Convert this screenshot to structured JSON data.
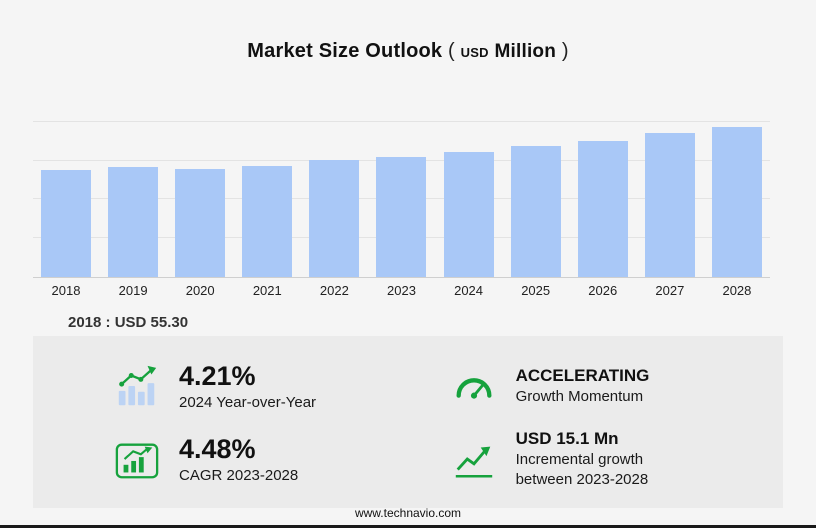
{
  "title": {
    "main": "Market Size Outlook",
    "paren_open": "(",
    "currency": "USD",
    "unit": "Million",
    "paren_close": ")"
  },
  "chart_data": {
    "type": "bar",
    "title": "Market Size Outlook (USD Million)",
    "categories": [
      "2018",
      "2019",
      "2020",
      "2021",
      "2022",
      "2023",
      "2024",
      "2025",
      "2026",
      "2027",
      "2028"
    ],
    "values": [
      55.3,
      56.8,
      55.8,
      57.3,
      60.3,
      62.0,
      64.6,
      67.5,
      70.2,
      74.0,
      77.1
    ],
    "xlabel": "",
    "ylabel": "",
    "ylim": [
      0,
      85
    ],
    "grid_step": 20,
    "gridlines": true,
    "legend": "none",
    "bar_color": "#a9c8f7",
    "annotation": "2018 : USD 55.30"
  },
  "annotation": {
    "text": "2018 : USD  55.30"
  },
  "stats": [
    {
      "id": "yoy",
      "value": "4.21%",
      "label": "2024 Year-over-Year"
    },
    {
      "id": "momentum",
      "value": "ACCELERATING",
      "label": "Growth Momentum"
    },
    {
      "id": "cagr",
      "value": "4.48%",
      "label": "CAGR 2023-2028"
    },
    {
      "id": "incremental",
      "value": "USD 15.1 Mn",
      "label": "Incremental growth",
      "label2": "between 2023-2028"
    }
  ],
  "footer": {
    "url": "www.technavio.com"
  },
  "colors": {
    "bar": "#a9c8f7",
    "green": "#16a23d",
    "panel": "#ebebeb",
    "page_bg": "#f5f5f5",
    "text": "#1a1a1a"
  }
}
